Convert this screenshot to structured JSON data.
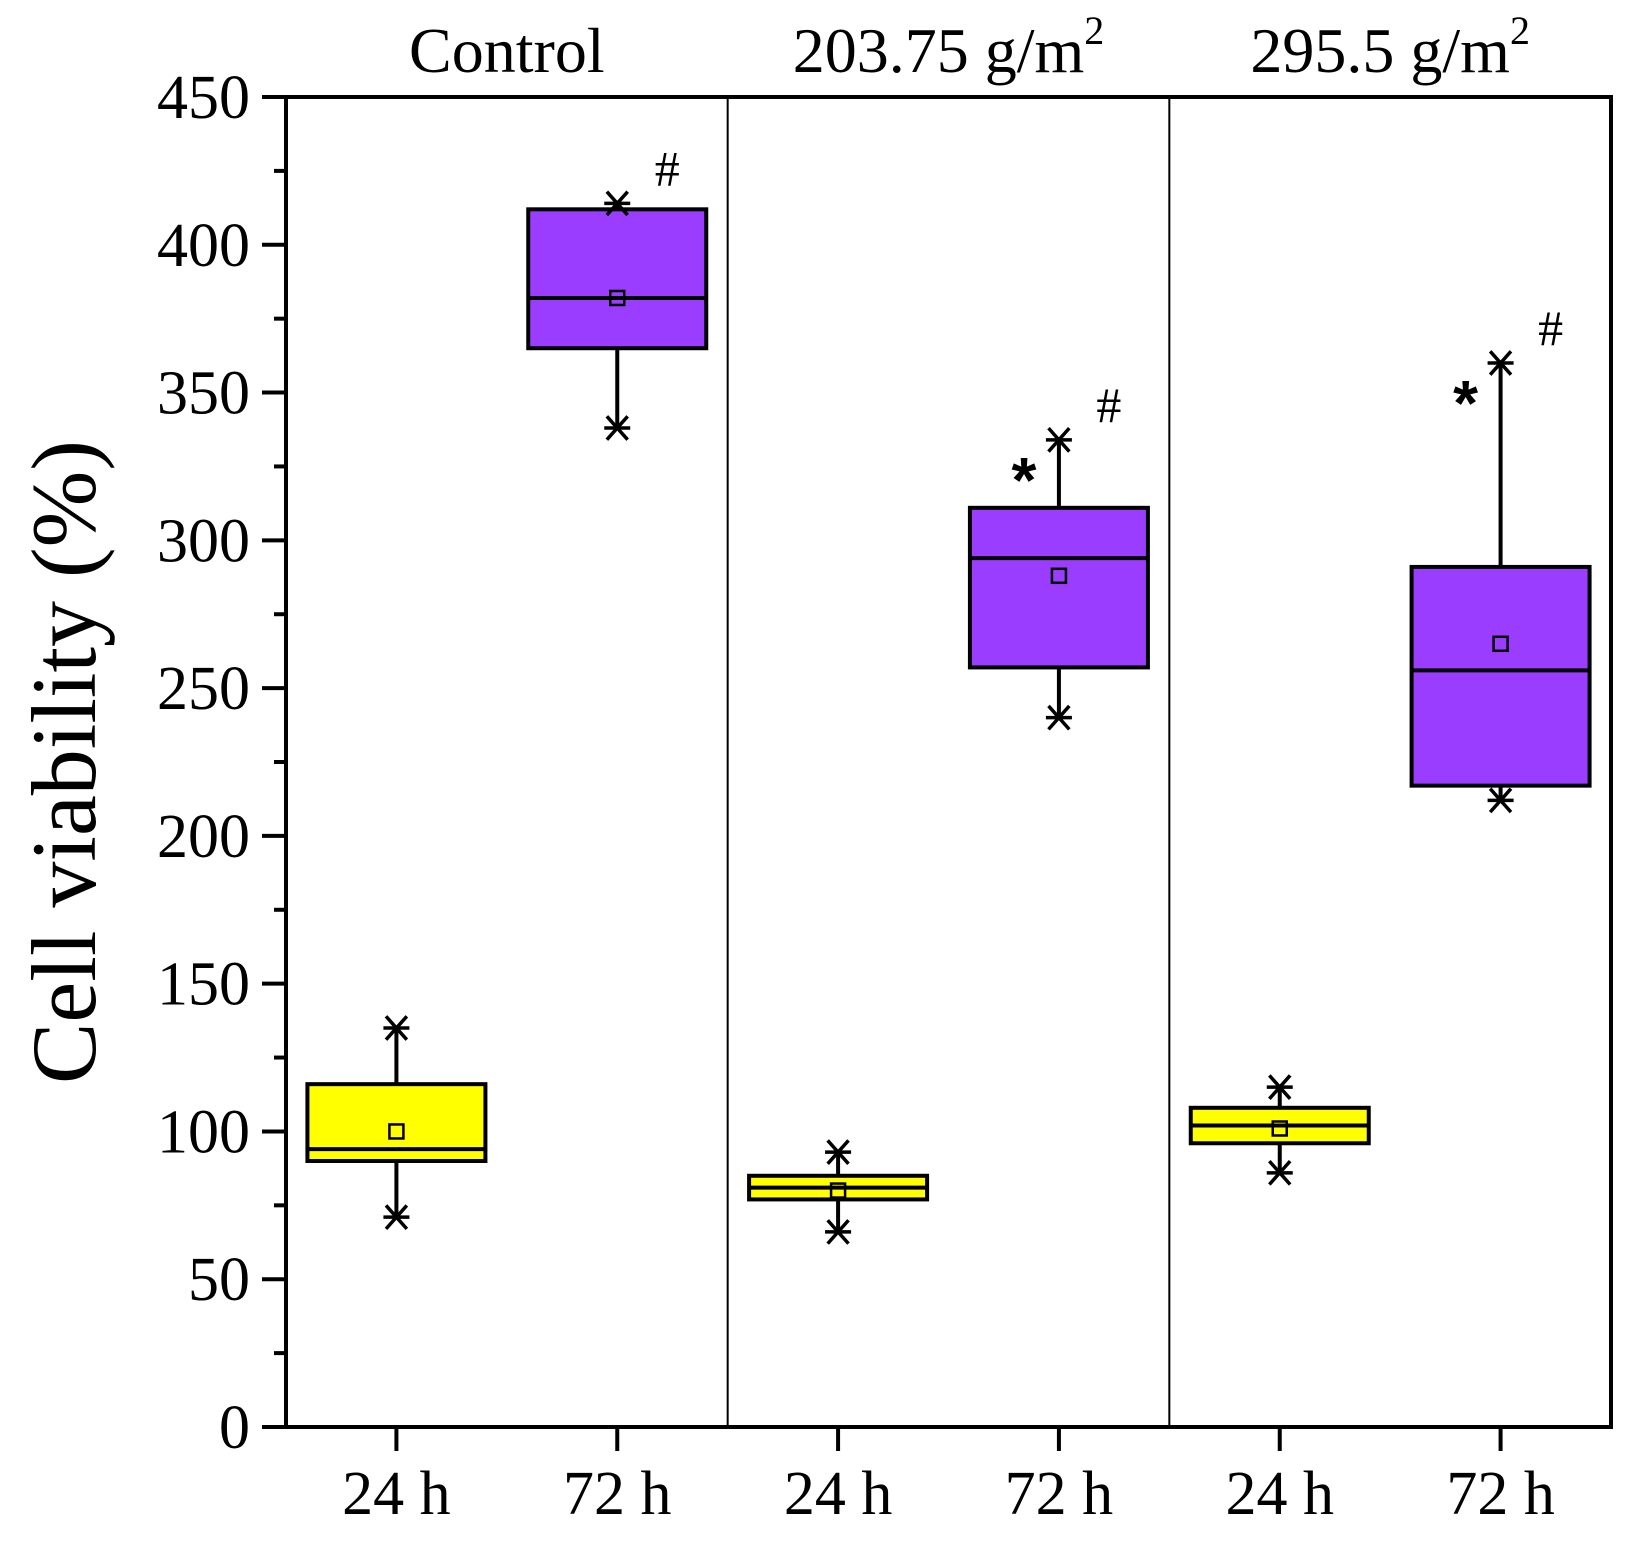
{
  "chart_data": {
    "type": "box",
    "ylabel": "Cell viability (%)",
    "ylim": [
      0,
      450
    ],
    "ytick_step": 50,
    "yminor_step": 25,
    "groups": [
      "Control",
      "203.75 g/m",
      "295.5 g/m"
    ],
    "group_superscripts": [
      "",
      "2",
      "2"
    ],
    "categories": [
      "24 h",
      "72 h",
      "24 h",
      "72 h",
      "24 h",
      "72 h"
    ],
    "boxes": [
      {
        "group": 0,
        "label": "24 h",
        "min": 71,
        "q1": 90,
        "median": 94,
        "q3": 116,
        "max": 135,
        "mean": 100,
        "color": "#ffff00",
        "annotations": []
      },
      {
        "group": 0,
        "label": "72 h",
        "min": 338,
        "q1": 365,
        "median": 382,
        "q3": 412,
        "max": 414,
        "mean": 382,
        "color": "#9b3dff",
        "annotations": [
          "#"
        ]
      },
      {
        "group": 1,
        "label": "24 h",
        "min": 66,
        "q1": 77,
        "median": 81,
        "q3": 85,
        "max": 93,
        "mean": 80,
        "color": "#ffff00",
        "annotations": []
      },
      {
        "group": 1,
        "label": "72 h",
        "min": 240,
        "q1": 257,
        "median": 294,
        "q3": 311,
        "max": 334,
        "mean": 288,
        "color": "#9b3dff",
        "annotations": [
          "*",
          "#"
        ]
      },
      {
        "group": 2,
        "label": "24 h",
        "min": 86,
        "q1": 96,
        "median": 102,
        "q3": 108,
        "max": 115,
        "mean": 101,
        "color": "#ffff00",
        "annotations": []
      },
      {
        "group": 2,
        "label": "72 h",
        "min": 212,
        "q1": 217,
        "median": 256,
        "q3": 291,
        "max": 360,
        "mean": 265,
        "color": "#9b3dff",
        "annotations": [
          "*",
          "#"
        ]
      }
    ]
  }
}
